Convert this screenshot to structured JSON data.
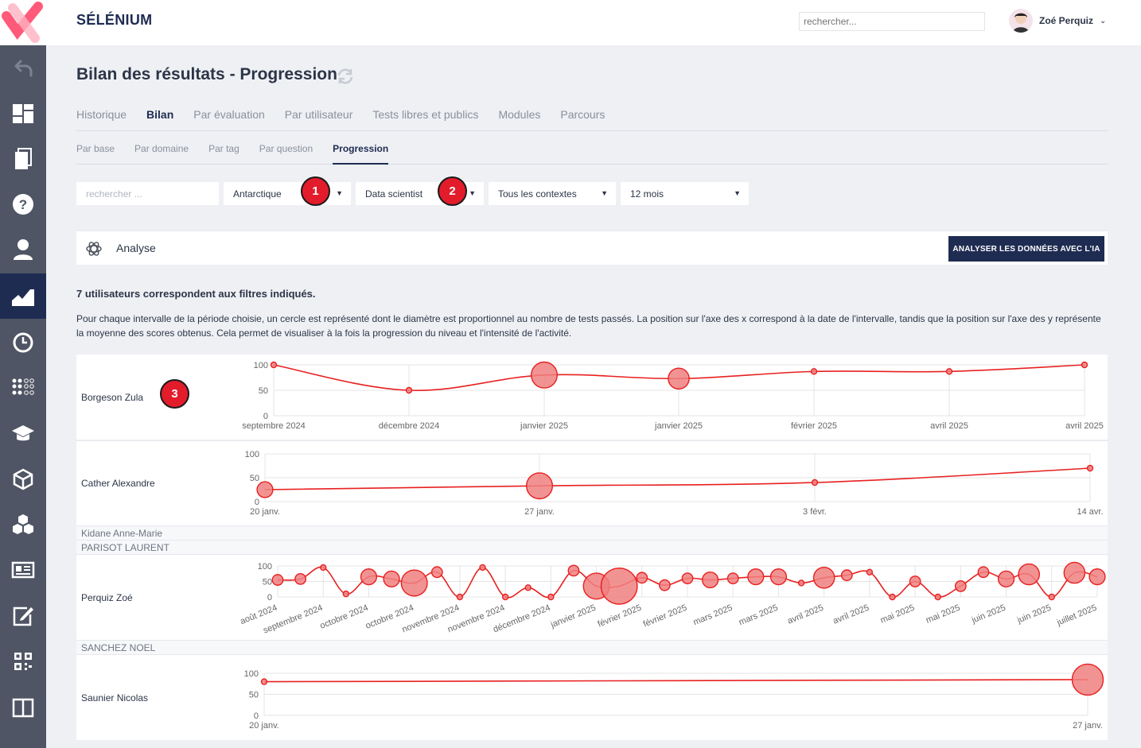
{
  "header": {
    "brand": "SÉLÉNIUM",
    "search_placeholder": "rechercher...",
    "user_name": "Zoé Perquiz"
  },
  "sidebar": {
    "items": [
      {
        "name": "back-icon"
      },
      {
        "name": "dashboard-icon"
      },
      {
        "name": "documents-icon"
      },
      {
        "name": "help-icon"
      },
      {
        "name": "user-icon"
      },
      {
        "name": "chart-icon",
        "active": true
      },
      {
        "name": "clock-icon"
      },
      {
        "name": "grid-icon"
      },
      {
        "name": "graduation-cap-icon"
      },
      {
        "name": "box-icon"
      },
      {
        "name": "boxes-icon"
      },
      {
        "name": "news-icon"
      },
      {
        "name": "edit-icon"
      },
      {
        "name": "qr-code-icon"
      },
      {
        "name": "columns-icon"
      }
    ]
  },
  "page": {
    "title": "Bilan des résultats - Progression"
  },
  "main_tabs": [
    {
      "label": "Historique",
      "active": false
    },
    {
      "label": "Bilan",
      "active": true
    },
    {
      "label": "Par évaluation",
      "active": false
    },
    {
      "label": "Par utilisateur",
      "active": false
    },
    {
      "label": "Tests libres et publics",
      "active": false
    },
    {
      "label": "Modules",
      "active": false
    },
    {
      "label": "Parcours",
      "active": false
    }
  ],
  "sub_tabs": [
    {
      "label": "Par base",
      "active": false
    },
    {
      "label": "Par domaine",
      "active": false
    },
    {
      "label": "Par tag",
      "active": false
    },
    {
      "label": "Par question",
      "active": false
    },
    {
      "label": "Progression",
      "active": true
    }
  ],
  "filters": {
    "search_placeholder": "rechercher ...",
    "region": "Antarctique",
    "profile": "Data scientist",
    "context": "Tous les contextes",
    "period": "12 mois"
  },
  "markers": [
    "1",
    "2",
    "3"
  ],
  "analyse": {
    "label": "Analyse",
    "button": "ANALYSER LES DONNÉES AVEC L'IA"
  },
  "results": {
    "count_text": "7 utilisateurs correspondent aux filtres indiqués.",
    "description": "Pour chaque intervalle de la période choisie, un cercle est représenté dont le diamètre est proportionnel au nombre de tests passés. La position sur l'axe des x correspond à la date de l'intervalle, tandis que la position sur l'axe des y représente la moyenne des scores obtenus. Cela permet de visualiser à la fois la progression du niveau et l'intensité de l'activité."
  },
  "users": [
    {
      "name": "Borgeson Zula"
    },
    {
      "name": "Cather Alexandre"
    },
    {
      "name": "Kidane Anne-Marie"
    },
    {
      "name": "PARISOT LAURENT"
    },
    {
      "name": "Perquiz Zoé"
    },
    {
      "name": "SANCHEZ NOEL"
    },
    {
      "name": "Saunier Nicolas"
    }
  ],
  "colors": {
    "accent": "#1f2c52",
    "sidebar": "#4f5564",
    "series": "#e82020",
    "bubble_fill": "#f08080",
    "marker": "#e21c2b"
  },
  "chart_data": [
    {
      "type": "scatter",
      "user": "Borgeson Zula",
      "ylim": [
        0,
        100
      ],
      "yticks": [
        0,
        50,
        100
      ],
      "x": [
        "septembre 2024",
        "décembre 2024",
        "janvier 2025",
        "janvier 2025",
        "février 2025",
        "avril 2025",
        "avril 2025"
      ],
      "y": [
        100,
        50,
        80,
        73,
        87,
        87,
        100
      ],
      "size": [
        1,
        1,
        5,
        4,
        1,
        1,
        1
      ],
      "grid": true
    },
    {
      "type": "scatter",
      "user": "Cather Alexandre",
      "ylim": [
        0,
        100
      ],
      "yticks": [
        0,
        50,
        100
      ],
      "x": [
        "20 janv.",
        "27 janv.",
        "3 févr.",
        "14 avr."
      ],
      "y": [
        25,
        33,
        40,
        70
      ],
      "size": [
        3,
        5,
        1,
        1
      ],
      "grid": true
    },
    {
      "type": "scatter",
      "user": "Perquiz Zoé",
      "ylim": [
        0,
        100
      ],
      "yticks": [
        0,
        50,
        100
      ],
      "x": [
        "août 2024",
        "septembre 2024",
        "octobre 2024",
        "octobre 2024",
        "novembre 2024",
        "novembre 2024",
        "décembre 2024",
        "janvier 2025",
        "février 2025",
        "février 2025",
        "mars 2025",
        "mars 2025",
        "avril 2025",
        "avril 2025",
        "mai 2025",
        "mai 2025",
        "juin 2025",
        "juin 2025",
        "juillet 2025"
      ],
      "points": [
        [
          0,
          55,
          2
        ],
        [
          1,
          58,
          2
        ],
        [
          2,
          95,
          1
        ],
        [
          3,
          10,
          1
        ],
        [
          4,
          65,
          3
        ],
        [
          5,
          58,
          3
        ],
        [
          6,
          45,
          5
        ],
        [
          7,
          80,
          2
        ],
        [
          8,
          0,
          1
        ],
        [
          9,
          95,
          1
        ],
        [
          10,
          0,
          1
        ],
        [
          11,
          30,
          1
        ],
        [
          12,
          0,
          1
        ],
        [
          13,
          85,
          2
        ],
        [
          14,
          35,
          5
        ],
        [
          15,
          35,
          7
        ],
        [
          16,
          62,
          2
        ],
        [
          17,
          38,
          2
        ],
        [
          18,
          60,
          2
        ],
        [
          19,
          55,
          3
        ],
        [
          20,
          60,
          2
        ],
        [
          21,
          65,
          3
        ],
        [
          22,
          65,
          3
        ],
        [
          23,
          45,
          1
        ],
        [
          24,
          62,
          4
        ],
        [
          25,
          70,
          2
        ],
        [
          26,
          80,
          1
        ],
        [
          27,
          0,
          1
        ],
        [
          28,
          50,
          2
        ],
        [
          29,
          0,
          1
        ],
        [
          30,
          35,
          2
        ],
        [
          31,
          80,
          2
        ],
        [
          32,
          58,
          3
        ],
        [
          33,
          73,
          4
        ],
        [
          34,
          0,
          1
        ],
        [
          35,
          78,
          4
        ],
        [
          36,
          65,
          3
        ]
      ],
      "grid": true
    },
    {
      "type": "scatter",
      "user": "Saunier Nicolas",
      "ylim": [
        0,
        100
      ],
      "yticks": [
        0,
        50,
        100
      ],
      "x": [
        "20 janv.",
        "27 janv."
      ],
      "y": [
        80,
        85
      ],
      "size": [
        1,
        6
      ],
      "grid": true
    }
  ]
}
